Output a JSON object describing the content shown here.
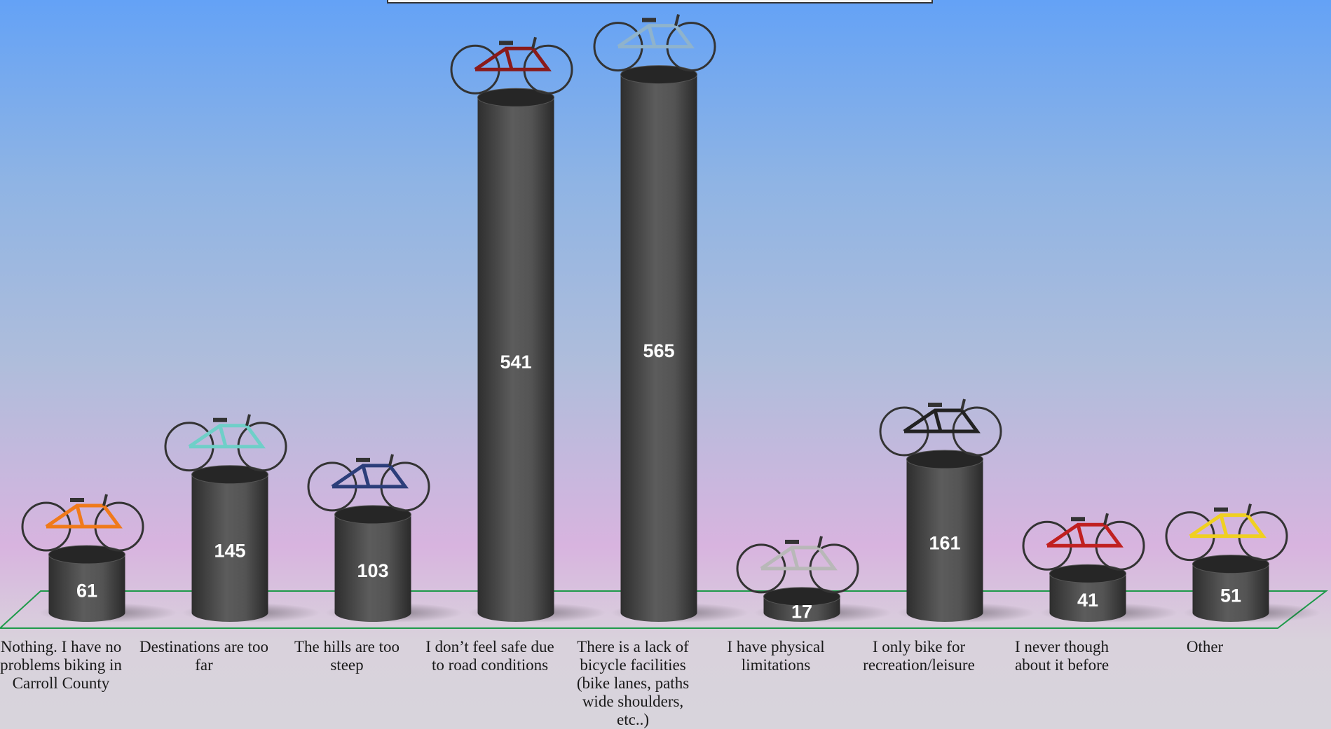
{
  "chart_data": {
    "type": "bar",
    "categories": [
      "Nothing. I have no problems biking in Carroll County",
      "Destinations are too far",
      "The hills are too steep",
      "I don’t feel safe due to road conditions",
      "There is a lack of bicycle facilities (bike lanes, paths wide shoulders, etc..)",
      "I have physical limitations",
      "I only bike for recreation/leisure",
      "I never though about it before",
      "Other"
    ],
    "values": [
      61,
      145,
      103,
      541,
      565,
      17,
      161,
      41,
      51
    ],
    "color": "#4a4a4a"
  }
}
